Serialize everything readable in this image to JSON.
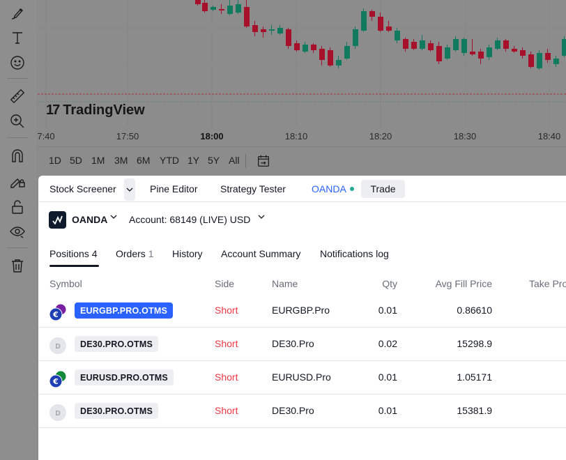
{
  "chart": {
    "logo_text": "TradingView",
    "x_ticks": [
      {
        "label": "7:40",
        "bold": false
      },
      {
        "label": "17:50",
        "bold": false
      },
      {
        "label": "18:00",
        "bold": true
      },
      {
        "label": "18:10",
        "bold": false
      },
      {
        "label": "18:20",
        "bold": false
      },
      {
        "label": "18:30",
        "bold": false
      },
      {
        "label": "18:40",
        "bold": false
      }
    ],
    "colors": {
      "up": "#0f7a5e",
      "down": "#a6102a"
    }
  },
  "range_bar": {
    "buttons": [
      "1D",
      "5D",
      "1M",
      "3M",
      "6M",
      "YTD",
      "1Y",
      "5Y",
      "All"
    ]
  },
  "panel": {
    "tabs": {
      "stock_screener": "Stock Screener",
      "pine_editor": "Pine Editor",
      "strategy_tester": "Strategy Tester",
      "oanda": "OANDA",
      "trade": "Trade"
    },
    "broker": {
      "name": "OANDA",
      "account": "Account: 68149 (LIVE) USD"
    },
    "subtabs": {
      "positions": "Positions",
      "positions_count": "4",
      "orders": "Orders",
      "orders_count": "1",
      "history": "History",
      "account_summary": "Account Summary",
      "notifications_log": "Notifications log"
    },
    "columns": {
      "symbol": "Symbol",
      "side": "Side",
      "name": "Name",
      "qty": "Qty",
      "avg_fill_price": "Avg Fill Price",
      "take_profit": "Take Pro"
    },
    "rows": [
      {
        "symbol": "EURGBP.PRO.OTMS",
        "side": "Short",
        "name": "EURGBP.Pro",
        "qty": "0.01",
        "avg_fill_price": "0.86610",
        "icon": "euro-gbp-icon",
        "icon_letter": "€"
      },
      {
        "symbol": "DE30.PRO.OTMS",
        "side": "Short",
        "name": "DE30.Pro",
        "qty": "0.02",
        "avg_fill_price": "15298.9",
        "icon": "letter-d-icon",
        "icon_letter": "D"
      },
      {
        "symbol": "EURUSD.PRO.OTMS",
        "side": "Short",
        "name": "EURUSD.Pro",
        "qty": "0.01",
        "avg_fill_price": "1.05171",
        "icon": "euro-usd-icon",
        "icon_letter": "€"
      },
      {
        "symbol": "DE30.PRO.OTMS",
        "side": "Short",
        "name": "DE30.Pro",
        "qty": "0.01",
        "avg_fill_price": "15381.9",
        "icon": "letter-d-icon",
        "icon_letter": "D"
      }
    ]
  }
}
